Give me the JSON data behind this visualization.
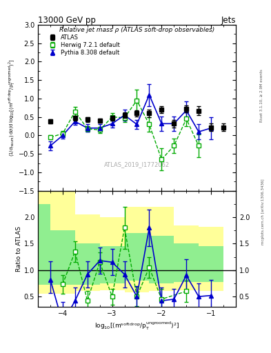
{
  "title_top": "13000 GeV pp",
  "title_right": "Jets",
  "plot_title": "Relative jet mass ρ (ATLAS soft-drop observables)",
  "ylabel_main": "(1/σ$_{\\mathrm{resum}}$) dσ/d log$_{10}$[(m$^{\\mathrm{soft\\,drop}}$/p$_\\mathrm{T}^{\\mathrm{ungroomed}}$)$^2$]",
  "ylabel_ratio": "Ratio to ATLAS",
  "watermark": "ATLAS_2019_I1772062",
  "right_label1": "Rivet 3.1.10, ≥ 2.9M events",
  "right_label2": "mcplots.cern.ch [arXiv:1306.3436]",
  "x_values": [
    -4.25,
    -4.0,
    -3.75,
    -3.5,
    -3.25,
    -3.0,
    -2.75,
    -2.5,
    -2.25,
    -2.0,
    -1.75,
    -1.5,
    -1.25,
    -1.0,
    -0.75
  ],
  "atlas_y": [
    0.38,
    null,
    0.47,
    0.43,
    0.4,
    0.47,
    0.55,
    0.6,
    0.6,
    0.7,
    0.32,
    0.72,
    0.67,
    0.22,
    0.22
  ],
  "atlas_yerr": [
    0.06,
    null,
    0.06,
    0.06,
    0.06,
    0.06,
    0.07,
    0.08,
    0.1,
    0.1,
    0.1,
    0.1,
    0.12,
    0.1,
    0.1
  ],
  "herwig_y": [
    -0.05,
    0.05,
    0.65,
    0.18,
    0.15,
    0.5,
    0.48,
    0.95,
    0.3,
    -0.65,
    -0.28,
    0.45,
    -0.28,
    null,
    null
  ],
  "herwig_yerr_lo": [
    0.06,
    0.08,
    0.12,
    0.08,
    0.08,
    0.1,
    0.12,
    0.3,
    0.2,
    0.3,
    0.2,
    0.2,
    0.3,
    null,
    null
  ],
  "herwig_yerr_hi": [
    0.06,
    0.08,
    0.12,
    0.08,
    0.08,
    0.1,
    0.12,
    0.3,
    0.2,
    0.3,
    0.2,
    0.2,
    0.3,
    null,
    null
  ],
  "pythia_y": [
    -0.28,
    0.0,
    0.38,
    0.2,
    0.2,
    0.32,
    0.55,
    0.3,
    1.1,
    0.32,
    0.32,
    0.68,
    0.1,
    0.2,
    null
  ],
  "pythia_yerr_lo": [
    0.12,
    0.08,
    0.1,
    0.1,
    0.1,
    0.1,
    0.15,
    0.12,
    0.3,
    0.2,
    0.2,
    0.25,
    0.2,
    0.3,
    null
  ],
  "pythia_yerr_hi": [
    0.12,
    0.08,
    0.1,
    0.1,
    0.1,
    0.1,
    0.15,
    0.12,
    0.3,
    0.2,
    0.2,
    0.25,
    0.2,
    0.3,
    null
  ],
  "ratio_herwig": [
    null,
    0.73,
    1.35,
    0.42,
    1.15,
    0.5,
    1.8,
    0.5,
    1.05,
    0.45,
    null,
    0.6,
    null,
    null,
    null
  ],
  "ratio_herwig_err_lo": [
    null,
    0.18,
    0.2,
    0.18,
    0.18,
    0.15,
    0.4,
    0.18,
    0.2,
    0.2,
    null,
    0.2,
    null,
    null,
    null
  ],
  "ratio_herwig_err_hi": [
    null,
    0.18,
    0.2,
    0.18,
    0.18,
    0.15,
    0.4,
    0.18,
    0.2,
    0.2,
    null,
    0.2,
    null,
    null,
    null
  ],
  "ratio_pythia": [
    0.82,
    0.0,
    0.42,
    0.92,
    1.18,
    1.15,
    0.92,
    0.5,
    1.8,
    0.42,
    0.45,
    0.9,
    0.5,
    0.52,
    null
  ],
  "ratio_pythia_err_lo": [
    0.25,
    0.4,
    0.25,
    0.25,
    0.25,
    0.25,
    0.25,
    0.2,
    0.35,
    0.25,
    0.2,
    0.3,
    0.25,
    0.3,
    null
  ],
  "ratio_pythia_err_hi": [
    0.35,
    0.4,
    0.25,
    0.25,
    0.25,
    0.25,
    0.25,
    0.2,
    0.35,
    0.25,
    0.2,
    0.3,
    0.25,
    0.3,
    null
  ],
  "band_x_edges": [
    -4.5,
    -4.25,
    -3.75,
    -3.25,
    -2.75,
    -2.25,
    -1.75,
    -1.25,
    -0.75
  ],
  "band_green_lo": [
    0.72,
    0.72,
    0.72,
    0.75,
    0.8,
    0.75,
    0.78,
    0.78,
    0.78
  ],
  "band_green_hi": [
    2.25,
    1.75,
    1.5,
    1.45,
    1.7,
    1.65,
    1.5,
    1.45,
    1.6
  ],
  "band_yellow_lo": [
    0.55,
    0.55,
    0.6,
    0.62,
    0.58,
    0.6,
    0.62,
    0.6,
    0.6
  ],
  "band_yellow_hi": [
    2.55,
    2.55,
    2.05,
    2.0,
    2.2,
    2.2,
    1.85,
    1.82,
    2.05
  ],
  "xlim": [
    -4.5,
    -0.5
  ],
  "ylim_main": [
    -1.5,
    3.0
  ],
  "ylim_ratio": [
    0.3,
    2.5
  ],
  "color_herwig": "#00aa00",
  "color_pythia": "#0000cc",
  "color_band_green": "#90EE90",
  "color_band_yellow": "#FFFF99"
}
